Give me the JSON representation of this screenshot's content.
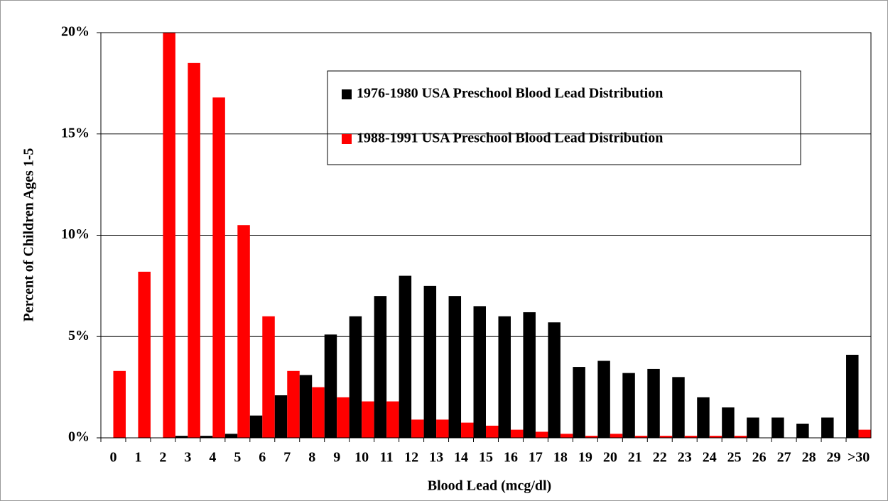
{
  "chart_data": {
    "type": "bar",
    "x_label": "Blood Lead (mcg/dl)",
    "y_label": "Percent of Children Ages 1-5",
    "categories": [
      "0",
      "1",
      "2",
      "3",
      "4",
      "5",
      "6",
      "7",
      "8",
      "9",
      "10",
      "11",
      "12",
      "13",
      "14",
      "15",
      "16",
      "17",
      "18",
      "19",
      "20",
      "21",
      "22",
      "23",
      "24",
      "25",
      "26",
      "27",
      "28",
      "29",
      ">30"
    ],
    "series": [
      {
        "name": "1976-1980 USA Preschool Blood Lead Distribution",
        "color": "#000000",
        "values": [
          0,
          0,
          0,
          0.1,
          0.1,
          0.2,
          1.1,
          2.1,
          3.1,
          5.1,
          6.0,
          7.0,
          8.0,
          7.5,
          7.0,
          6.5,
          6.0,
          6.2,
          5.7,
          3.5,
          3.8,
          3.2,
          3.4,
          3.0,
          2.0,
          1.5,
          1.0,
          1.0,
          0.7,
          1.0,
          4.1
        ]
      },
      {
        "name": "1988-1991 USA Preschool Blood Lead Distribution",
        "color": "#ff0000",
        "values": [
          3.3,
          8.2,
          20,
          18.5,
          16.8,
          10.5,
          6.0,
          3.3,
          2.5,
          2.0,
          1.8,
          1.8,
          0.9,
          0.9,
          0.75,
          0.6,
          0.4,
          0.3,
          0.2,
          0.1,
          0.2,
          0.1,
          0.1,
          0.1,
          0.1,
          0.1,
          0,
          0,
          0,
          0,
          0.4
        ]
      }
    ],
    "ylim": [
      0,
      20
    ],
    "yticks": [
      {
        "value": 0,
        "label": "0%"
      },
      {
        "value": 5,
        "label": "5%"
      },
      {
        "value": 10,
        "label": "10%"
      },
      {
        "value": 15,
        "label": "15%"
      },
      {
        "value": 20,
        "label": "20%"
      }
    ],
    "grid": true
  }
}
